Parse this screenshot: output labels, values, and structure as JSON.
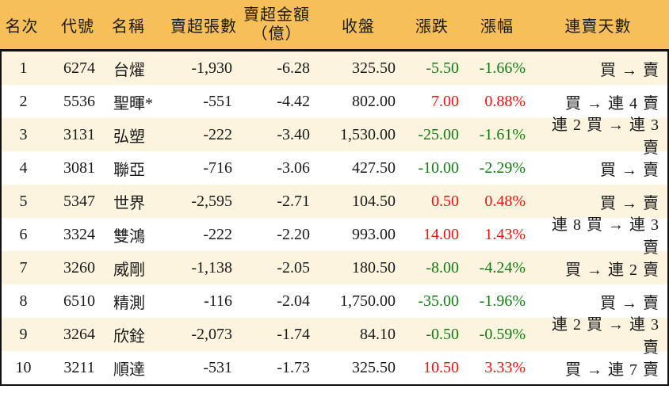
{
  "colors": {
    "header_bg": "#F7BF5A",
    "row_alt_bg": "#FCF4DE",
    "row_bg": "#FFFFFF",
    "up_red": "#EE1111",
    "down_green": "#127B12",
    "text": "#1A1A1A",
    "border": "#111111"
  },
  "header": {
    "rank": "名次",
    "code": "代號",
    "name": "名稱",
    "volume": "賣超張數",
    "amount_line1": "賣超金額",
    "amount_line2": "（億）",
    "close": "收盤",
    "change": "漲跌",
    "pct": "漲幅",
    "streak": "連賣天數"
  },
  "chart_data": {
    "type": "table",
    "columns": [
      "名次",
      "代號",
      "名稱",
      "賣超張數",
      "賣超金額（億）",
      "收盤",
      "漲跌",
      "漲幅",
      "連賣天數"
    ],
    "rows": [
      {
        "rank": "1",
        "code": "6274",
        "name": "台燿",
        "volume": "-1,930",
        "amount": "-6.28",
        "close": "325.50",
        "change": "-5.50",
        "pct": "-1.66%",
        "trend": "down",
        "streak": "買 → 賣"
      },
      {
        "rank": "2",
        "code": "5536",
        "name": "聖暉*",
        "volume": "-551",
        "amount": "-4.42",
        "close": "802.00",
        "change": "7.00",
        "pct": "0.88%",
        "trend": "up",
        "streak": "買 → 連 4 賣"
      },
      {
        "rank": "3",
        "code": "3131",
        "name": "弘塑",
        "volume": "-222",
        "amount": "-3.40",
        "close": "1,530.00",
        "change": "-25.00",
        "pct": "-1.61%",
        "trend": "down",
        "streak": "連 2 買 → 連 3 賣"
      },
      {
        "rank": "4",
        "code": "3081",
        "name": "聯亞",
        "volume": "-716",
        "amount": "-3.06",
        "close": "427.50",
        "change": "-10.00",
        "pct": "-2.29%",
        "trend": "down",
        "streak": "買 → 賣"
      },
      {
        "rank": "5",
        "code": "5347",
        "name": "世界",
        "volume": "-2,595",
        "amount": "-2.71",
        "close": "104.50",
        "change": "0.50",
        "pct": "0.48%",
        "trend": "up",
        "streak": "買 → 賣"
      },
      {
        "rank": "6",
        "code": "3324",
        "name": "雙鴻",
        "volume": "-222",
        "amount": "-2.20",
        "close": "993.00",
        "change": "14.00",
        "pct": "1.43%",
        "trend": "up",
        "streak": "連 8 買 → 連 3 賣"
      },
      {
        "rank": "7",
        "code": "3260",
        "name": "威剛",
        "volume": "-1,138",
        "amount": "-2.05",
        "close": "180.50",
        "change": "-8.00",
        "pct": "-4.24%",
        "trend": "down",
        "streak": "買 → 連 2 賣"
      },
      {
        "rank": "8",
        "code": "6510",
        "name": "精測",
        "volume": "-116",
        "amount": "-2.04",
        "close": "1,750.00",
        "change": "-35.00",
        "pct": "-1.96%",
        "trend": "down",
        "streak": "買 → 賣"
      },
      {
        "rank": "9",
        "code": "3264",
        "name": "欣銓",
        "volume": "-2,073",
        "amount": "-1.74",
        "close": "84.10",
        "change": "-0.50",
        "pct": "-0.59%",
        "trend": "down",
        "streak": "連 2 買 → 連 3 賣"
      },
      {
        "rank": "10",
        "code": "3211",
        "name": "順達",
        "volume": "-531",
        "amount": "-1.73",
        "close": "325.50",
        "change": "10.50",
        "pct": "3.33%",
        "trend": "up",
        "streak": "買 → 連 7 賣"
      }
    ]
  }
}
